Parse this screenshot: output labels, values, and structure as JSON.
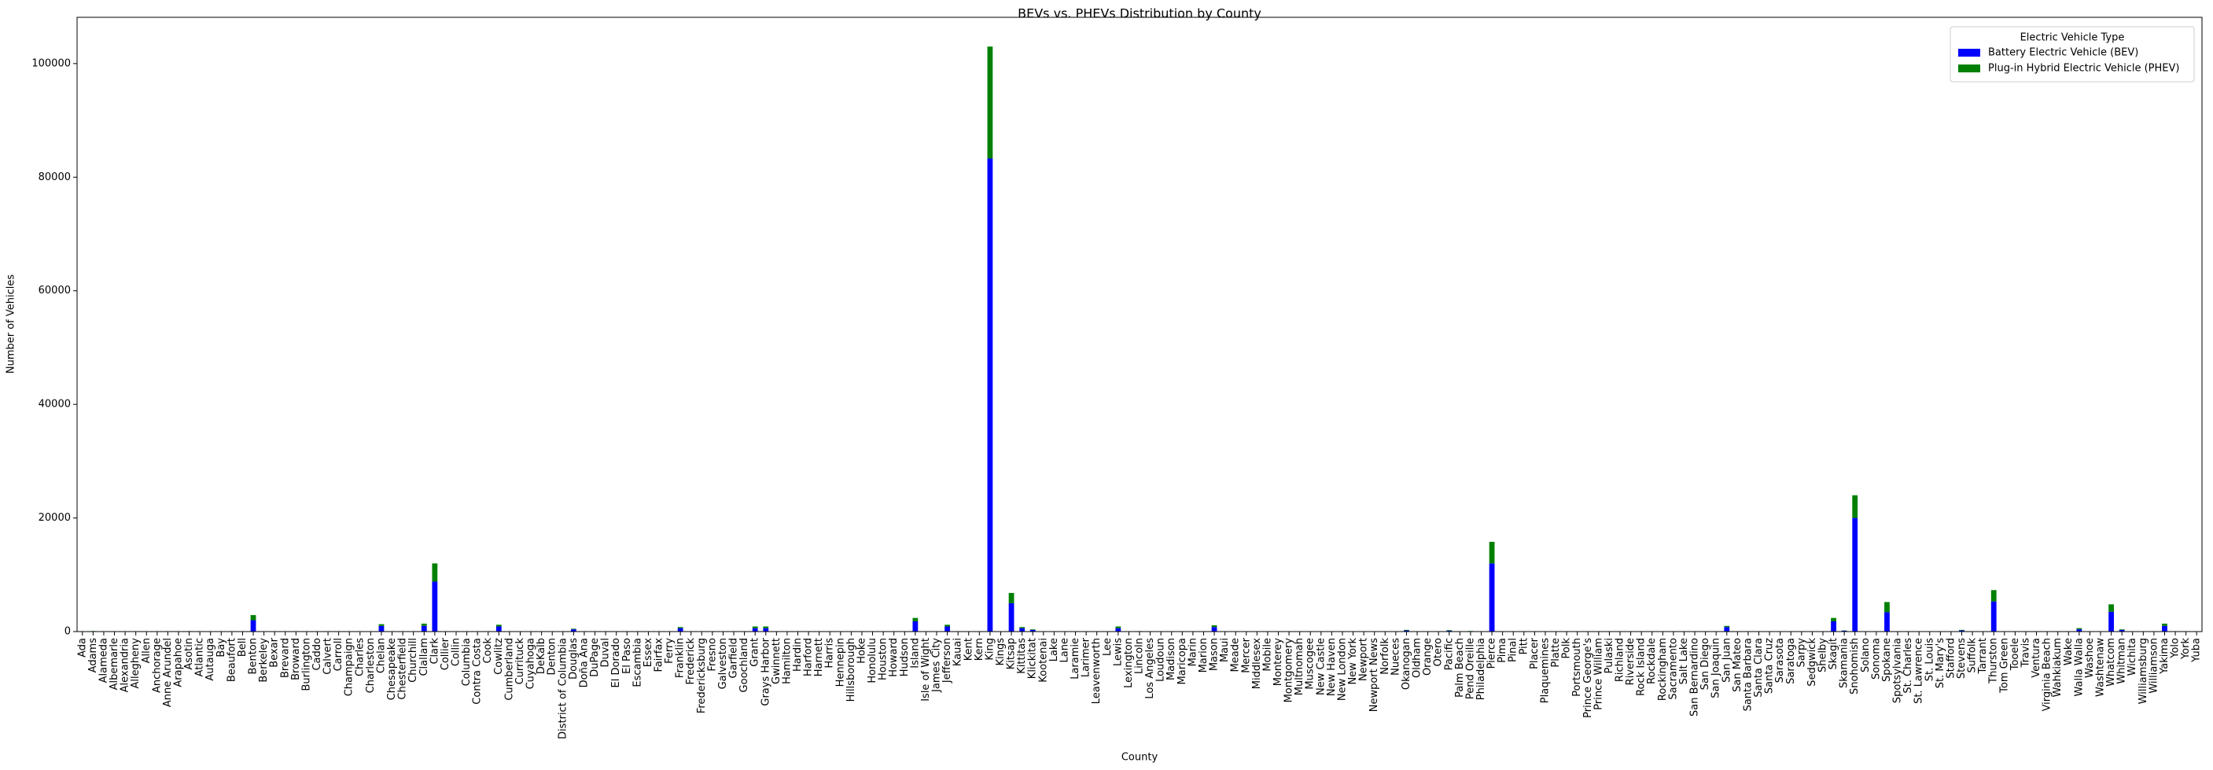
{
  "chart_data": {
    "type": "stacked_bar",
    "title": "BEVs vs. PHEVs Distribution by County",
    "x_label": "County",
    "y_label": "Number of Vehicles",
    "legend_title": "Electric Vehicle Type",
    "legend": "upper right",
    "categories": [
      "Ada",
      "Adams",
      "Alameda",
      "Albemarle",
      "Alexandria",
      "Allegheny",
      "Allen",
      "Anchorage",
      "Anne Arundel",
      "Arapahoe",
      "Asotin",
      "Atlantic",
      "Autauga",
      "Bay",
      "Beaufort",
      "Bell",
      "Benton",
      "Berkeley",
      "Bexar",
      "Brevard",
      "Broward",
      "Burlington",
      "Caddo",
      "Calvert",
      "Carroll",
      "Champaign",
      "Charles",
      "Charleston",
      "Chelan",
      "Chesapeake",
      "Chesterfield",
      "Churchill",
      "Clallam",
      "Clark",
      "Collier",
      "Collin",
      "Columbia",
      "Contra Costa",
      "Cook",
      "Cowlitz",
      "Cumberland",
      "Currituck",
      "Cuyahoga",
      "DeKalb",
      "Denton",
      "District of Columbia",
      "Douglas",
      "Doña Ana",
      "DuPage",
      "Duval",
      "El Dorado",
      "El Paso",
      "Escambia",
      "Essex",
      "Fairfax",
      "Ferry",
      "Franklin",
      "Frederick",
      "Fredericksburg",
      "Fresno",
      "Galveston",
      "Garfield",
      "Goochland",
      "Grant",
      "Grays Harbor",
      "Gwinnett",
      "Hamilton",
      "Hardin",
      "Harford",
      "Harnett",
      "Harris",
      "Hennepin",
      "Hillsborough",
      "Hoke",
      "Honolulu",
      "Houston",
      "Howard",
      "Hudson",
      "Island",
      "Isle of Wight",
      "James City",
      "Jefferson",
      "Kauai",
      "Kent",
      "Kern",
      "King",
      "Kings",
      "Kitsap",
      "Kittitas",
      "Klickitat",
      "Kootenai",
      "Lake",
      "Lane",
      "Laramie",
      "Larimer",
      "Leavenworth",
      "Lee",
      "Lewis",
      "Lexington",
      "Lincoln",
      "Los Angeles",
      "Loudoun",
      "Madison",
      "Maricopa",
      "Marin",
      "Marion",
      "Mason",
      "Maui",
      "Meade",
      "Mercer",
      "Middlesex",
      "Mobile",
      "Monterey",
      "Montgomery",
      "Multnomah",
      "Muscogee",
      "New Castle",
      "New Haven",
      "New London",
      "New York",
      "Newport",
      "Newport News",
      "Norfolk",
      "Nueces",
      "Okanogan",
      "Oldham",
      "Orange",
      "Otero",
      "Pacific",
      "Palm Beach",
      "Pend Oreille",
      "Philadelphia",
      "Pierce",
      "Pima",
      "Pinal",
      "Pitt",
      "Placer",
      "Plaquemines",
      "Platte",
      "Polk",
      "Portsmouth",
      "Prince George's",
      "Prince William",
      "Pulaski",
      "Richland",
      "Riverside",
      "Rock Island",
      "Rockdale",
      "Rockingham",
      "Sacramento",
      "Salt Lake",
      "San Bernardino",
      "San Diego",
      "San Joaquin",
      "San Juan",
      "San Mateo",
      "Santa Barbara",
      "Santa Clara",
      "Santa Cruz",
      "Sarasota",
      "Saratoga",
      "Sarpy",
      "Sedgwick",
      "Shelby",
      "Skagit",
      "Skamania",
      "Snohomish",
      "Solano",
      "Sonoma",
      "Spokane",
      "Spotsylvania",
      "St. Charles",
      "St. Lawrence",
      "St. Louis",
      "St. Mary's",
      "Stafford",
      "Stevens",
      "Suffolk",
      "Tarrant",
      "Thurston",
      "Tom Green",
      "Tooele",
      "Travis",
      "Ventura",
      "Virginia Beach",
      "Wahkiakum",
      "Wake",
      "Walla Walla",
      "Washoe",
      "Washtenaw",
      "Whatcom",
      "Whitman",
      "Wichita",
      "Williamsburg",
      "Williamson",
      "Yakima",
      "Yolo",
      "York",
      "Yuba"
    ],
    "series": [
      {
        "name": "Battery Electric Vehicle (BEV)",
        "color": "#0000ff",
        "values": [
          1,
          60,
          1,
          1,
          1,
          1,
          1,
          1,
          1,
          1,
          50,
          1,
          1,
          1,
          1,
          1,
          2000,
          1,
          1,
          1,
          1,
          1,
          1,
          1,
          1,
          1,
          1,
          1,
          1000,
          1,
          1,
          1,
          1000,
          8800,
          1,
          1,
          10,
          1,
          1,
          900,
          1,
          1,
          1,
          1,
          1,
          1,
          400,
          1,
          1,
          1,
          1,
          1,
          1,
          1,
          1,
          20,
          600,
          1,
          1,
          1,
          1,
          5,
          1,
          600,
          600,
          1,
          1,
          1,
          1,
          1,
          1,
          1,
          1,
          1,
          1,
          1,
          1,
          1,
          1800,
          1,
          1,
          900,
          1,
          1,
          1,
          83300,
          1,
          5000,
          600,
          300,
          1,
          1,
          1,
          1,
          1,
          1,
          1,
          600,
          1,
          50,
          1,
          1,
          1,
          1,
          1,
          1,
          800,
          1,
          1,
          1,
          1,
          1,
          1,
          1,
          1,
          1,
          1,
          1,
          1,
          1,
          1,
          1,
          1,
          1,
          200,
          1,
          1,
          1,
          150,
          1,
          60,
          1,
          12000,
          1,
          1,
          1,
          1,
          1,
          1,
          1,
          1,
          1,
          1,
          1,
          1,
          1,
          1,
          1,
          1,
          1,
          1,
          1,
          1,
          1,
          800,
          1,
          1,
          1,
          1,
          1,
          1,
          1,
          1,
          1,
          1800,
          150,
          20000,
          1,
          1,
          3400,
          1,
          1,
          1,
          1,
          1,
          1,
          200,
          1,
          1,
          5300,
          1,
          1,
          1,
          1,
          1,
          50,
          1,
          400,
          1,
          1,
          3500,
          300,
          1,
          1,
          1,
          1000,
          1,
          1,
          1
        ]
      },
      {
        "name": "Plug-in Hybrid Electric Vehicle (PHEV)",
        "color": "#008000",
        "values": [
          0,
          30,
          0,
          0,
          0,
          0,
          0,
          0,
          0,
          0,
          30,
          0,
          0,
          0,
          0,
          0,
          900,
          0,
          0,
          0,
          0,
          0,
          0,
          0,
          0,
          0,
          0,
          0,
          300,
          0,
          0,
          0,
          400,
          3200,
          0,
          0,
          5,
          0,
          0,
          300,
          0,
          0,
          0,
          0,
          0,
          0,
          100,
          0,
          0,
          0,
          0,
          0,
          0,
          0,
          0,
          10,
          200,
          0,
          0,
          0,
          0,
          3,
          0,
          300,
          300,
          0,
          0,
          0,
          0,
          0,
          0,
          0,
          0,
          0,
          0,
          0,
          0,
          0,
          600,
          0,
          0,
          300,
          0,
          0,
          0,
          19700,
          0,
          1800,
          200,
          100,
          0,
          0,
          0,
          0,
          0,
          0,
          0,
          300,
          0,
          30,
          0,
          0,
          0,
          0,
          0,
          0,
          300,
          0,
          0,
          0,
          0,
          0,
          0,
          0,
          0,
          0,
          0,
          0,
          0,
          0,
          0,
          0,
          0,
          0,
          100,
          0,
          0,
          0,
          100,
          0,
          40,
          0,
          3800,
          0,
          0,
          0,
          0,
          0,
          0,
          0,
          0,
          0,
          0,
          0,
          0,
          0,
          0,
          0,
          0,
          0,
          0,
          0,
          0,
          0,
          200,
          0,
          0,
          0,
          0,
          0,
          0,
          0,
          0,
          0,
          600,
          50,
          4000,
          0,
          0,
          1800,
          0,
          0,
          0,
          0,
          0,
          0,
          100,
          0,
          0,
          2000,
          0,
          0,
          0,
          0,
          0,
          20,
          0,
          200,
          0,
          0,
          1300,
          100,
          0,
          0,
          0,
          400,
          0,
          0,
          0
        ]
      }
    ],
    "ylim": [
      0,
      108150
    ],
    "yticks": [
      0,
      20000,
      40000,
      60000,
      80000,
      100000
    ]
  }
}
